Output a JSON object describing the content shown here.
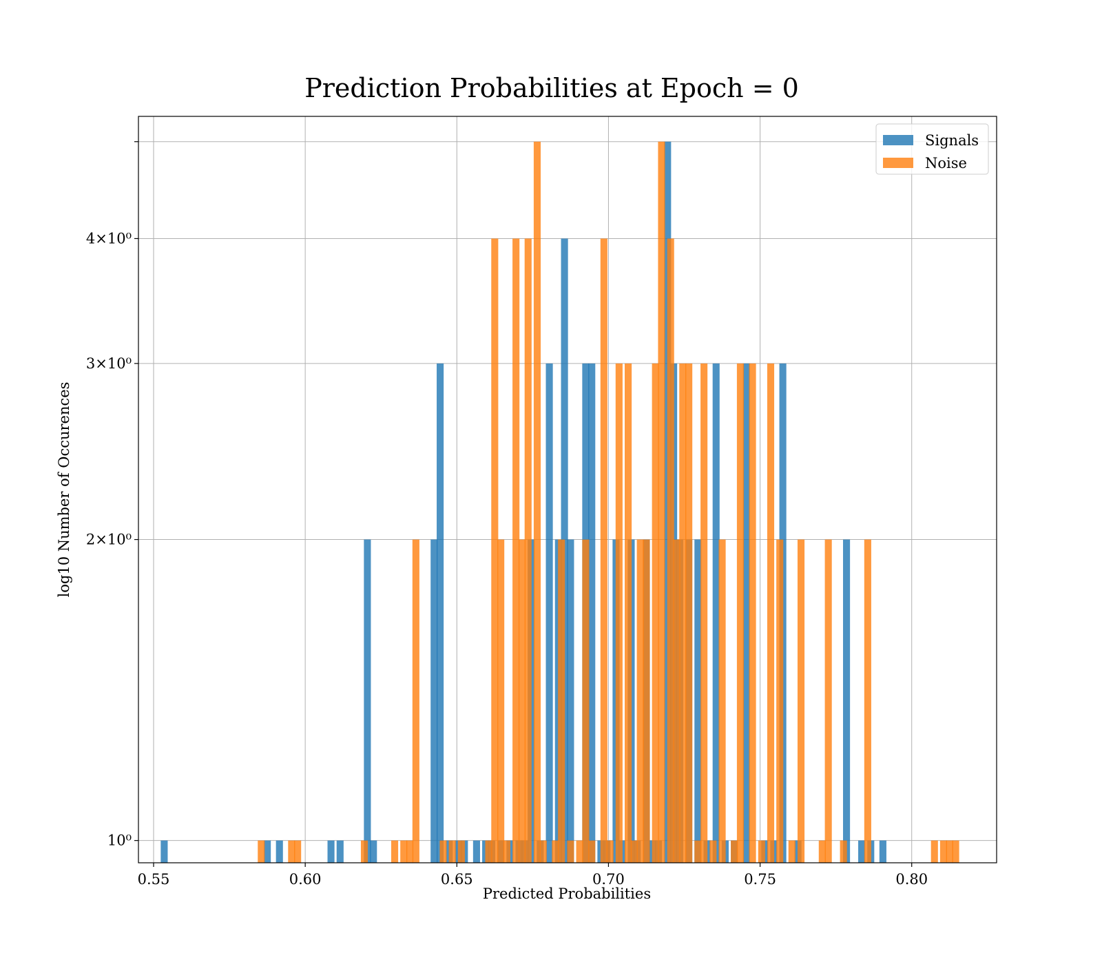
{
  "chart_data": {
    "type": "bar",
    "title": "Prediction Probabilities at Epoch = 0",
    "xlabel": "Predicted Probabilities",
    "ylabel": "log10 Number of Occurences",
    "x_scale": "linear",
    "y_scale": "log",
    "xlim": [
      0.545,
      0.828
    ],
    "ylim": [
      0.95,
      5.3
    ],
    "x_ticks": [
      0.55,
      0.6,
      0.65,
      0.7,
      0.75,
      0.8
    ],
    "x_tick_labels": [
      "0.55",
      "0.60",
      "0.65",
      "0.70",
      "0.75",
      "0.80"
    ],
    "y_ticks": [
      1,
      2,
      3,
      4,
      5
    ],
    "y_tick_labels": [
      "10⁰",
      "2×10⁰",
      "3×10⁰",
      "4×10⁰",
      ""
    ],
    "grid": true,
    "legend_position": "top-right",
    "bin_width": 0.0023,
    "series": [
      {
        "name": "Signals",
        "color": "#1f77b4",
        "x": [
          0.5535,
          0.5875,
          0.5915,
          0.6085,
          0.6115,
          0.6205,
          0.6225,
          0.6425,
          0.6445,
          0.6475,
          0.6505,
          0.6525,
          0.6565,
          0.6595,
          0.6615,
          0.6645,
          0.6675,
          0.6705,
          0.6725,
          0.6745,
          0.6775,
          0.6805,
          0.6835,
          0.6855,
          0.6875,
          0.6925,
          0.6945,
          0.6975,
          0.6995,
          0.7025,
          0.7045,
          0.7075,
          0.7095,
          0.7125,
          0.7145,
          0.7165,
          0.7195,
          0.7215,
          0.7235,
          0.7265,
          0.7295,
          0.7325,
          0.7355,
          0.7385,
          0.7415,
          0.7455,
          0.7515,
          0.7545,
          0.7575,
          0.7625,
          0.7785,
          0.7835,
          0.7865,
          0.7905
        ],
        "values": [
          1,
          1,
          1,
          1,
          1,
          2,
          1,
          2,
          3,
          1,
          1,
          1,
          1,
          1,
          1,
          1,
          1,
          1,
          1,
          2,
          1,
          3,
          2,
          4,
          2,
          3,
          3,
          1,
          1,
          2,
          1,
          2,
          1,
          2,
          1,
          1,
          5,
          3,
          2,
          2,
          2,
          1,
          3,
          1,
          1,
          3,
          1,
          1,
          3,
          1,
          2,
          1,
          1,
          1
        ]
      },
      {
        "name": "Noise",
        "color": "#ff7f0e",
        "x": [
          0.5855,
          0.5955,
          0.5975,
          0.6195,
          0.6295,
          0.6325,
          0.6345,
          0.6365,
          0.6455,
          0.6485,
          0.6515,
          0.6605,
          0.6625,
          0.6645,
          0.6665,
          0.6695,
          0.6715,
          0.6735,
          0.6765,
          0.6785,
          0.6825,
          0.6845,
          0.6875,
          0.6905,
          0.6925,
          0.6945,
          0.6985,
          0.7005,
          0.7035,
          0.7065,
          0.7085,
          0.7105,
          0.7125,
          0.7155,
          0.7175,
          0.7205,
          0.7225,
          0.7245,
          0.7265,
          0.7295,
          0.7315,
          0.7345,
          0.7375,
          0.7415,
          0.7435,
          0.7475,
          0.7505,
          0.7535,
          0.7565,
          0.7605,
          0.7635,
          0.7705,
          0.7725,
          0.7775,
          0.7855,
          0.8075,
          0.8105,
          0.8125,
          0.8145
        ],
        "values": [
          1,
          1,
          1,
          1,
          1,
          1,
          1,
          2,
          1,
          1,
          1,
          1,
          4,
          2,
          1,
          4,
          2,
          4,
          5,
          1,
          1,
          2,
          1,
          1,
          2,
          1,
          4,
          1,
          3,
          3,
          1,
          2,
          2,
          3,
          5,
          4,
          2,
          3,
          3,
          1,
          3,
          1,
          2,
          1,
          3,
          3,
          1,
          3,
          2,
          1,
          2,
          1,
          2,
          1,
          2,
          1,
          1,
          1,
          1
        ]
      }
    ]
  }
}
